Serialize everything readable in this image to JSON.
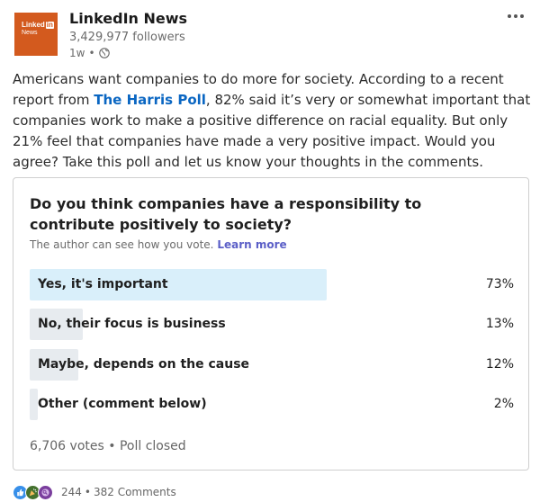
{
  "author": {
    "logo_brand": "Linked",
    "logo_in": "in",
    "logo_sub": "News",
    "name": "LinkedIn News",
    "followers": "3,429,977 followers",
    "time": "1w",
    "visibility_icon": "globe-icon"
  },
  "post": {
    "text_before_link": "Americans want companies to do more for society. According to a recent report from ",
    "link": "The Harris Poll",
    "text_after_link": ", 82% said it’s very or somewhat important that companies work to make a positive difference on racial equality. But only 21% feel that companies have made a very positive impact. Would you agree? Take this poll and let us know your thoughts in the comments."
  },
  "poll": {
    "question": "Do you think companies have a responsibility to contribute positively to society?",
    "note": "The author can see how you vote.",
    "learn_more": "Learn more",
    "options": [
      {
        "label": "Yes, it's important",
        "percent": "73%",
        "value": 0.73,
        "winner": true
      },
      {
        "label": "No, their focus is business",
        "percent": "13%",
        "value": 0.13,
        "winner": false
      },
      {
        "label": "Maybe, depends on the cause",
        "percent": "12%",
        "value": 0.12,
        "winner": false
      },
      {
        "label": "Other (comment below)",
        "percent": "2%",
        "value": 0.02,
        "winner": false
      }
    ],
    "votes": "6,706 votes",
    "status": "Poll closed"
  },
  "social": {
    "reaction_icons": [
      "like-icon",
      "celebrate-icon",
      "curious-icon"
    ],
    "reactions": "244",
    "comments": "382 Comments"
  },
  "colors": {
    "logo_bg": "#d35a1e",
    "link": "#0a66c2",
    "winner_bar": "#d9effa",
    "other_bar": "#e7ebef"
  }
}
